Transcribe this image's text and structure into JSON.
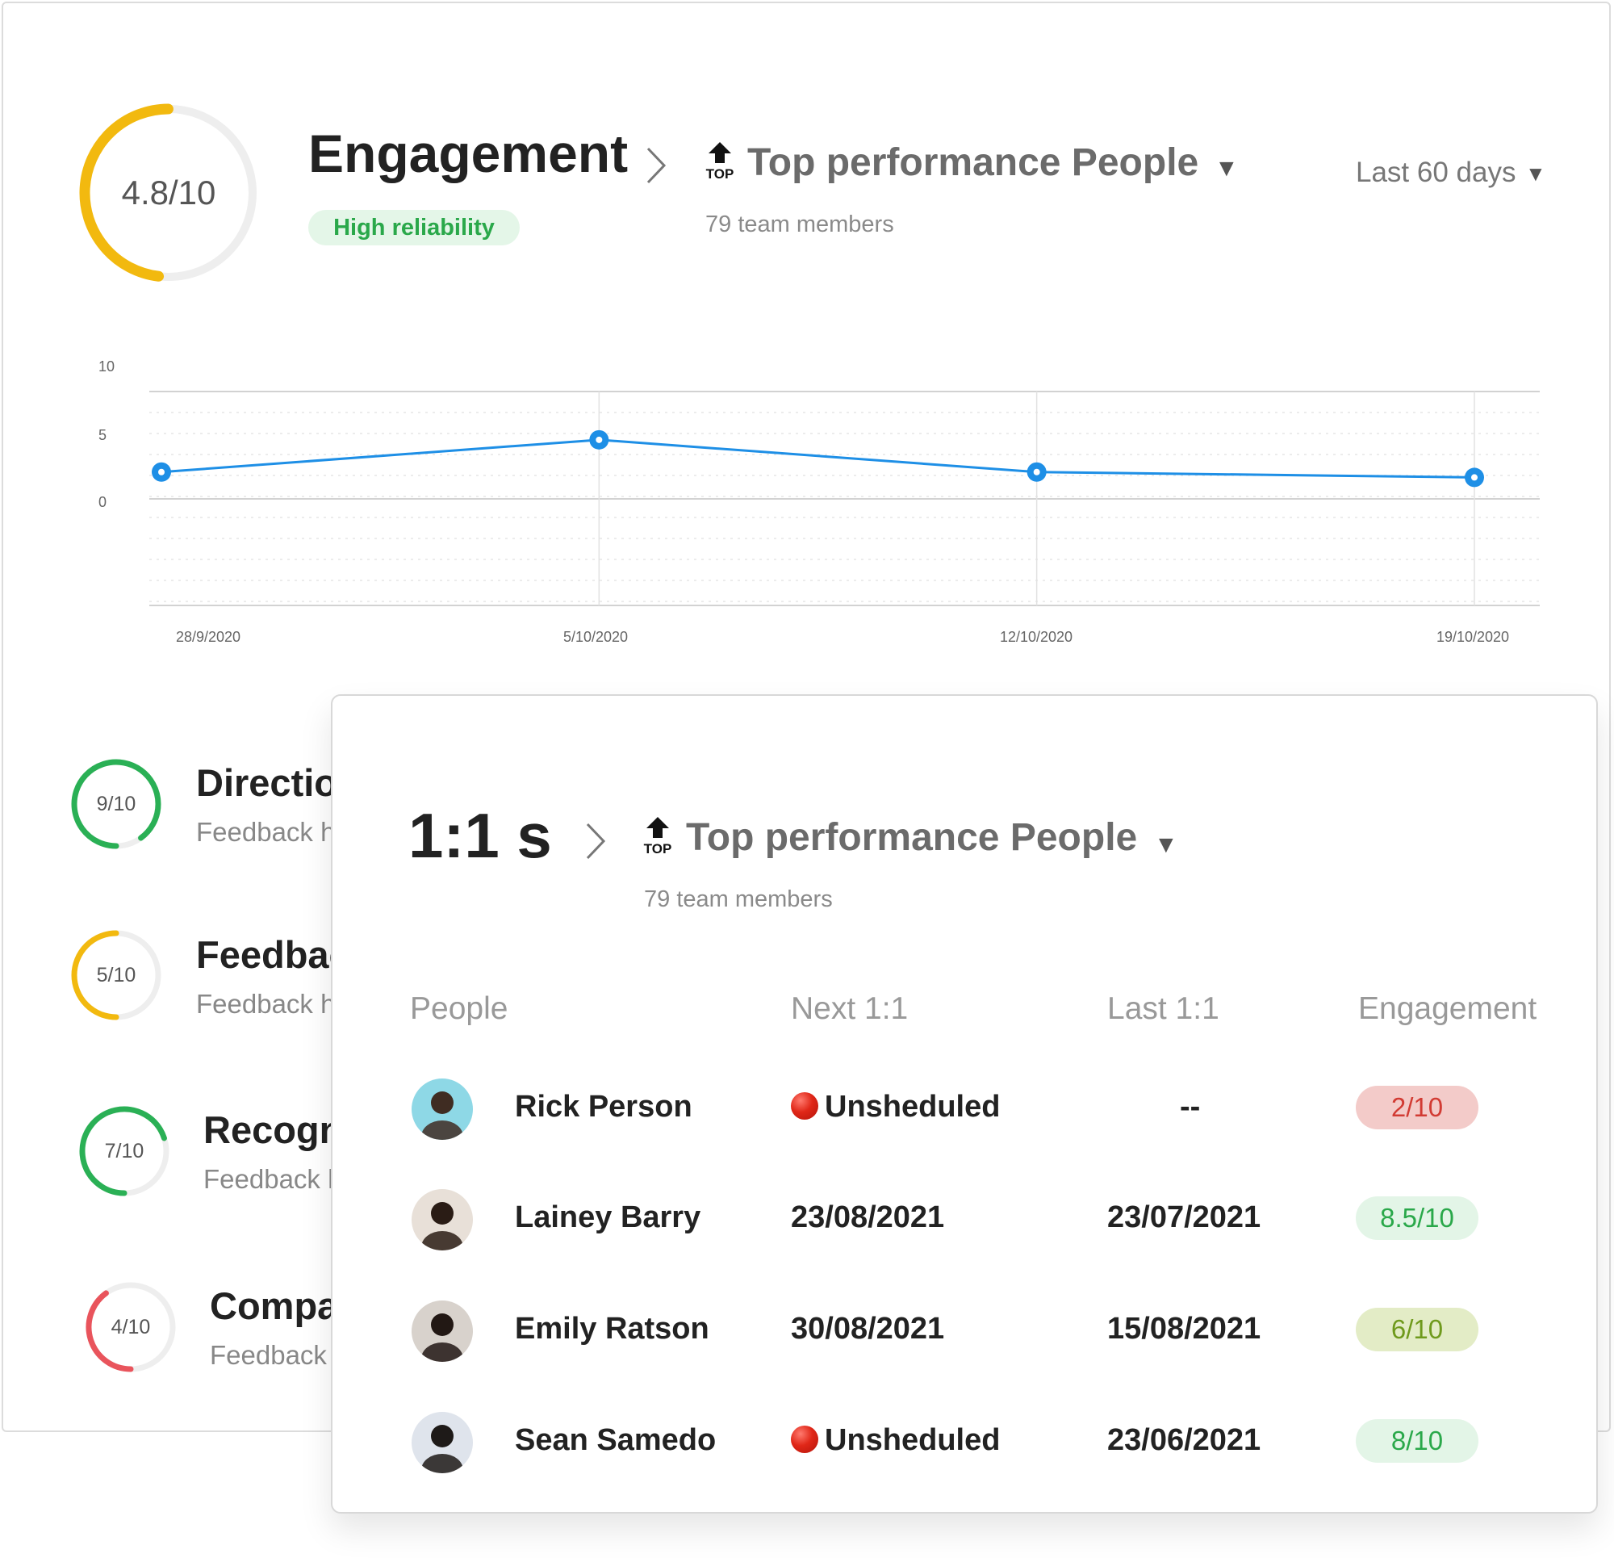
{
  "engagement": {
    "score": "4.8/10",
    "title": "Engagement",
    "badge": "High reliability",
    "group": "Top performance People",
    "group_icon_label": "TOP",
    "members": "79 team members",
    "range": "Last 60 days",
    "colors": {
      "ring": "#f2b90f",
      "badge_text": "#2aa84a",
      "line": "#1e8fe6"
    }
  },
  "chart_data": {
    "type": "line",
    "x": [
      "28/9/2020",
      "5/10/2020",
      "12/10/2020",
      "19/10/2020"
    ],
    "series": [
      {
        "values": [
          2.5,
          5.5,
          2.5,
          2.0
        ]
      }
    ],
    "y_ticks": [
      "10",
      "5",
      "0"
    ],
    "grid": true
  },
  "metrics": [
    {
      "score": "9/10",
      "title": "Directio",
      "sub": "Feedback h",
      "value": 0.9,
      "color": "#2ab055"
    },
    {
      "score": "5/10",
      "title": "Feedbac",
      "sub": "Feedback h",
      "value": 0.5,
      "color": "#f2b90f"
    },
    {
      "score": "7/10",
      "title": "Recogn",
      "sub": "Feedback h",
      "value": 0.7,
      "color": "#2ab055"
    },
    {
      "score": "4/10",
      "title": "Compa",
      "sub": "Feedback",
      "value": 0.4,
      "color": "#e9545c"
    }
  ],
  "one_on_ones": {
    "title": "1:1 s",
    "group": "Top performance People",
    "group_icon_label": "TOP",
    "members": "79 team members",
    "headers": [
      "People",
      "Next 1:1",
      "Last 1:1",
      "Engagement"
    ],
    "rows": [
      {
        "name": "Rick Person",
        "next": "Unsheduled",
        "next_status": "red-dot",
        "last": "--",
        "engagement": "2/10",
        "tone": "bad"
      },
      {
        "name": "Lainey Barry",
        "next": "23/08/2021",
        "next_status": "",
        "last": "23/07/2021",
        "engagement": "8.5/10",
        "tone": "good"
      },
      {
        "name": "Emily Ratson",
        "next": "30/08/2021",
        "next_status": "",
        "last": "15/08/2021",
        "engagement": "6/10",
        "tone": "mid"
      },
      {
        "name": "Sean Samedo",
        "next": "Unsheduled",
        "next_status": "red-dot",
        "last": "23/06/2021",
        "engagement": "8/10",
        "tone": "good"
      }
    ],
    "tone_colors": {
      "bad": {
        "bg": "#f3cbc9",
        "fg": "#d23b33"
      },
      "good": {
        "bg": "#e3f5e7",
        "fg": "#2aa84a"
      },
      "mid": {
        "bg": "#e3ecc6",
        "fg": "#6f9a1c"
      }
    }
  }
}
